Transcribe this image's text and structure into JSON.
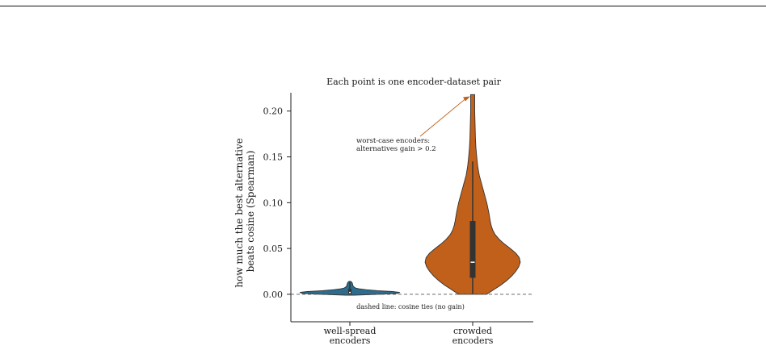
{
  "chart_data": {
    "type": "violin",
    "title": "Each point is one encoder-dataset pair",
    "xlabel": "",
    "ylabel": "how much the best alternative beats cosine (Spearman)",
    "ylabel_lines": [
      "how much the best alternative",
      "beats cosine (Spearman)"
    ],
    "ylim": [
      -0.03,
      0.22
    ],
    "yticks": [
      0.0,
      0.05,
      0.1,
      0.15,
      0.2
    ],
    "ytick_labels": [
      "0.00",
      "0.05",
      "0.10",
      "0.15",
      "0.20"
    ],
    "categories": [
      {
        "label": [
          "well-spread",
          "encoders"
        ],
        "color": "#2c6c8f"
      },
      {
        "label": [
          "crowded",
          "encoders"
        ],
        "color": "#c0601a"
      }
    ],
    "violins": [
      {
        "category": "well-spread encoders",
        "min": -0.001,
        "max": 0.014,
        "q1": 0.0,
        "median": 0.002,
        "q3": 0.006,
        "density": [
          [
            -0.001,
            0.08
          ],
          [
            0.0,
            0.6
          ],
          [
            0.001,
            0.95
          ],
          [
            0.002,
            1.0
          ],
          [
            0.003,
            0.85
          ],
          [
            0.004,
            0.55
          ],
          [
            0.005,
            0.32
          ],
          [
            0.006,
            0.18
          ],
          [
            0.007,
            0.11
          ],
          [
            0.008,
            0.08
          ],
          [
            0.009,
            0.065
          ],
          [
            0.01,
            0.06
          ],
          [
            0.011,
            0.055
          ],
          [
            0.012,
            0.05
          ],
          [
            0.013,
            0.04
          ],
          [
            0.014,
            0.02
          ]
        ]
      },
      {
        "category": "crowded encoders",
        "min": 0.0,
        "max": 0.218,
        "q1": 0.018,
        "median": 0.035,
        "q3": 0.08,
        "whisker_low": 0.0,
        "whisker_high": 0.145,
        "density": [
          [
            0.0,
            0.28
          ],
          [
            0.005,
            0.42
          ],
          [
            0.01,
            0.56
          ],
          [
            0.015,
            0.68
          ],
          [
            0.02,
            0.78
          ],
          [
            0.025,
            0.86
          ],
          [
            0.03,
            0.92
          ],
          [
            0.035,
            0.95
          ],
          [
            0.04,
            0.93
          ],
          [
            0.045,
            0.86
          ],
          [
            0.05,
            0.75
          ],
          [
            0.055,
            0.63
          ],
          [
            0.06,
            0.53
          ],
          [
            0.065,
            0.45
          ],
          [
            0.07,
            0.4
          ],
          [
            0.075,
            0.37
          ],
          [
            0.08,
            0.35
          ],
          [
            0.09,
            0.32
          ],
          [
            0.1,
            0.28
          ],
          [
            0.11,
            0.23
          ],
          [
            0.12,
            0.18
          ],
          [
            0.13,
            0.13
          ],
          [
            0.14,
            0.1
          ],
          [
            0.15,
            0.08
          ],
          [
            0.16,
            0.065
          ],
          [
            0.17,
            0.055
          ],
          [
            0.18,
            0.05
          ],
          [
            0.19,
            0.045
          ],
          [
            0.2,
            0.04
          ],
          [
            0.21,
            0.04
          ],
          [
            0.218,
            0.04
          ]
        ]
      }
    ],
    "reference_line": {
      "y": 0.0,
      "style": "dashed",
      "label": "dashed line: cosine ties (no gain)"
    },
    "annotation": {
      "text_lines": [
        "worst-case encoders:",
        "alternatives gain > 0.2"
      ],
      "color": "#c0601a",
      "target_x": "crowded encoders",
      "target_y": 0.216
    },
    "grid": false,
    "legend": "none"
  }
}
